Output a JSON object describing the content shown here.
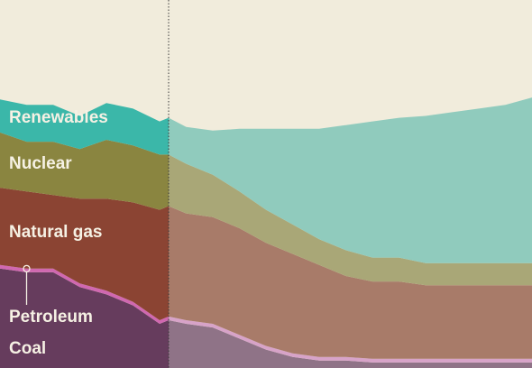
{
  "chart_data": {
    "type": "area",
    "stacked": true,
    "x_range": [
      0,
      100
    ],
    "y_range": [
      0,
      100
    ],
    "grid": false,
    "legend": "inline labels",
    "projection_start_x": 31.7,
    "background_color": "#f1ecdc",
    "x": [
      0,
      5,
      10,
      15,
      20,
      25,
      30,
      31.7,
      35,
      40,
      45,
      50,
      55,
      60,
      65,
      70,
      75,
      80,
      85,
      90,
      95,
      100
    ],
    "series": [
      {
        "name": "Coal",
        "color": "#663c5d",
        "projected_color": "#8f7387",
        "values": [
          27,
          26,
          26,
          22,
          20,
          17,
          12,
          13,
          12,
          11,
          8,
          5,
          3,
          2,
          2,
          1.5,
          1.5,
          1.5,
          1.5,
          1.5,
          1.5,
          1.5
        ]
      },
      {
        "name": "Petroleum",
        "color": "#d068b0",
        "projected_color": "#d7a3c8",
        "values": [
          1,
          1,
          1,
          1,
          1,
          1,
          1,
          1,
          1,
          1,
          1,
          1,
          1,
          1,
          1,
          1,
          1,
          1,
          1,
          1,
          1,
          1
        ]
      },
      {
        "name": "Natural gas",
        "color": "#8b4433",
        "projected_color": "#a87b69",
        "values": [
          21,
          21,
          20,
          23,
          25,
          27,
          30,
          30,
          29,
          29,
          29,
          28,
          27,
          25,
          22,
          21,
          21,
          20,
          20,
          20,
          20,
          20
        ]
      },
      {
        "name": "Nuclear",
        "color": "#8a8540",
        "projected_color": "#a9a777",
        "values": [
          15,
          13.5,
          14.5,
          13.5,
          16,
          15.5,
          15,
          14,
          13.5,
          11.5,
          10,
          9,
          8,
          7,
          7,
          6.5,
          6.5,
          6,
          6,
          6,
          6,
          6
        ]
      },
      {
        "name": "Renewables",
        "color": "#3bb7a9",
        "projected_color": "#90cbbd",
        "values": [
          9,
          10,
          10,
          9,
          10,
          10,
          9,
          10,
          10,
          12,
          17,
          22,
          26,
          30,
          34,
          37,
          38,
          40,
          41,
          42,
          43,
          45
        ]
      }
    ],
    "callout": {
      "series": "Petroleum",
      "x": 5
    }
  }
}
